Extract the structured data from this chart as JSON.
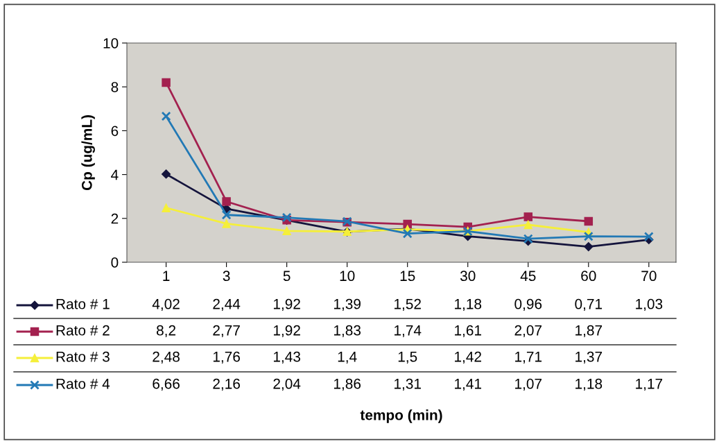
{
  "chart_data": {
    "type": "line",
    "annotations": [
      "tempo (min)"
    ],
    "ylabel": "Cp (ug/mL)",
    "categories": [
      "1",
      "3",
      "5",
      "10",
      "15",
      "30",
      "45",
      "60",
      "70"
    ],
    "ylim": [
      0,
      10
    ],
    "yticks": [
      0,
      2,
      4,
      6,
      8,
      10
    ],
    "grid": false,
    "legend": "bottom",
    "line_style": "solid",
    "series": [
      {
        "name": "Rato # 1",
        "color": "#14143c",
        "marker": "diamond",
        "values": [
          4.02,
          2.44,
          1.92,
          1.39,
          1.52,
          1.18,
          0.96,
          0.71,
          1.03
        ],
        "value_labels": [
          "4,02",
          "2,44",
          "1,92",
          "1,39",
          "1,52",
          "1,18",
          "0,96",
          "0,71",
          "1,03"
        ]
      },
      {
        "name": "Rato # 2",
        "color": "#a3214f",
        "marker": "square",
        "values": [
          8.2,
          2.77,
          1.92,
          1.83,
          1.74,
          1.61,
          2.07,
          1.87,
          null
        ],
        "value_labels": [
          "8,2",
          "2,77",
          "1,92",
          "1,83",
          "1,74",
          "1,61",
          "2,07",
          "1,87",
          null
        ]
      },
      {
        "name": "Rato # 3",
        "color": "#f5ef3a",
        "marker": "triangle",
        "values": [
          2.48,
          1.76,
          1.43,
          1.4,
          1.5,
          1.42,
          1.71,
          1.37,
          null
        ],
        "value_labels": [
          "2,48",
          "1,76",
          "1,43",
          "1,4",
          "1,5",
          "1,42",
          "1,71",
          "1,37",
          null
        ]
      },
      {
        "name": "Rato # 4",
        "color": "#2279b5",
        "marker": "cross",
        "values": [
          6.66,
          2.16,
          2.04,
          1.86,
          1.31,
          1.41,
          1.07,
          1.18,
          1.17
        ],
        "value_labels": [
          "6,66",
          "2,16",
          "2,04",
          "1,86",
          "1,31",
          "1,41",
          "1,07",
          "1,18",
          "1,17"
        ]
      }
    ]
  }
}
